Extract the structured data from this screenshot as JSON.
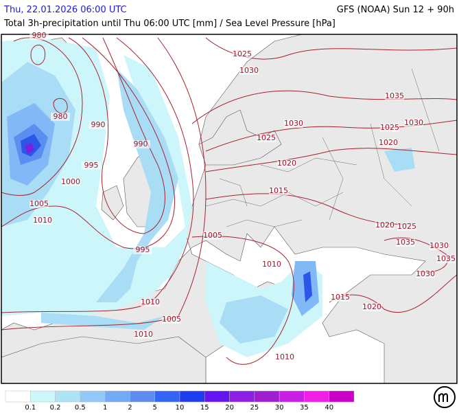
{
  "header": {
    "datetime": "Thu, 22.01.2026 06:00 UTC",
    "model": "GFS (NOAA) Sun 12 + 90h",
    "subtitle": "Total 3h-precipitation until Thu 06:00 UTC [mm] / Sea Level Pressure [hPa]"
  },
  "isobar_labels": [
    980,
    980,
    990,
    995,
    990,
    1000,
    1005,
    1010,
    995,
    1005,
    1010,
    1005,
    1010,
    1010,
    1010,
    1015,
    1020,
    1025,
    1030,
    1035,
    1030,
    1025,
    1030,
    1025,
    1020,
    1020,
    1015,
    1020,
    1025,
    1035,
    1030,
    1035,
    1030
  ],
  "legend": {
    "colors": [
      "#ffffff",
      "#cdf8fa",
      "#aee2f5",
      "#91c8f8",
      "#73aaf5",
      "#5f8cf0",
      "#3264f5",
      "#1e3cf0",
      "#6414f0",
      "#8c1ee6",
      "#a01ed2",
      "#c81ee6",
      "#f01ee6",
      "#c800c8"
    ],
    "labels": [
      0.1,
      0.2,
      0.5,
      1,
      2,
      5,
      10,
      15,
      20,
      25,
      30,
      35,
      40
    ]
  }
}
